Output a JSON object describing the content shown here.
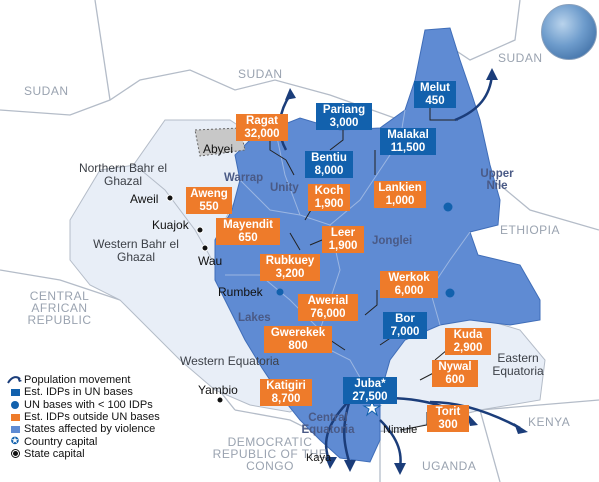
{
  "countries": {
    "sudan_top": "SUDAN",
    "sudan_left": "SUDAN",
    "sudan_right": "SUDAN",
    "ethiopia": "ETHIOPIA",
    "car": "CENTRAL AFRICAN REPUBLIC",
    "drc": "DEMOCRATIC REPUBLIC OF THE CONGO",
    "kenya": "KENYA",
    "uganda": "UGANDA"
  },
  "states": {
    "upper_nile": "Upper Nile",
    "unity": "Unity",
    "warrap": "Warrap",
    "jonglei": "Jonglei",
    "lakes": "Lakes",
    "central_equatoria": "Central Equatoria",
    "northern_bahr": "Northern Bahr el Ghazal",
    "western_bahr": "Western Bahr el Ghazal",
    "western_equatoria": "Western Equatoria",
    "eastern_equatoria": "Eastern Equatoria"
  },
  "region": {
    "abyei": "Abyei"
  },
  "cities": {
    "aweil": "Aweil",
    "kuajok": "Kuajok",
    "wau": "Wau",
    "rumbek": "Rumbek",
    "yambio": "Yambio",
    "nimule": "Nimule",
    "kaya": "Kaya"
  },
  "idp_sites": [
    {
      "name": "Melut",
      "count": "450",
      "type": "un_base"
    },
    {
      "name": "Pariang",
      "count": "3,000",
      "type": "un_base"
    },
    {
      "name": "Malakal",
      "count": "11,500",
      "type": "un_base"
    },
    {
      "name": "Bentiu",
      "count": "8,000",
      "type": "un_base"
    },
    {
      "name": "Bor",
      "count": "7,000",
      "type": "un_base"
    },
    {
      "name": "Juba*",
      "count": "27,500",
      "type": "un_base"
    },
    {
      "name": "Ragat",
      "count": "32,000",
      "type": "outside"
    },
    {
      "name": "Koch",
      "count": "1,900",
      "type": "outside"
    },
    {
      "name": "Lankien",
      "count": "1,000",
      "type": "outside"
    },
    {
      "name": "Aweng",
      "count": "550",
      "type": "outside"
    },
    {
      "name": "Mayendit",
      "count": "650",
      "type": "outside"
    },
    {
      "name": "Leer",
      "count": "1,900",
      "type": "outside"
    },
    {
      "name": "Rubkuey",
      "count": "3,200",
      "type": "outside"
    },
    {
      "name": "Werkok",
      "count": "6,000",
      "type": "outside"
    },
    {
      "name": "Awerial",
      "count": "76,000",
      "type": "outside"
    },
    {
      "name": "Gwerekek",
      "count": "800",
      "type": "outside"
    },
    {
      "name": "Kuda",
      "count": "2,900",
      "type": "outside"
    },
    {
      "name": "Nywal",
      "count": "600",
      "type": "outside"
    },
    {
      "name": "Katigiri",
      "count": "8,700",
      "type": "outside"
    },
    {
      "name": "Torit",
      "count": "300",
      "type": "outside"
    }
  ],
  "legend": [
    {
      "label": "Population movement",
      "symbol": "arrow-icon"
    },
    {
      "label": "Est. IDPs in UN bases",
      "symbol": "blue-square-icon"
    },
    {
      "label": "UN bases with < 100 IDPs",
      "symbol": "blue-dot-icon"
    },
    {
      "label": "Est. IDPs outside UN bases",
      "symbol": "orange-square-icon"
    },
    {
      "label": "States affected by violence",
      "symbol": "light-blue-square-icon"
    },
    {
      "label": "Country capital",
      "symbol": "star-icon"
    },
    {
      "label": "State capital",
      "symbol": "dot-icon"
    }
  ],
  "colors": {
    "background": "#dfe3ea",
    "country_fill": "#ffffff",
    "affected": "#5f8bd3",
    "unaffected_ss": "#e8eef7",
    "abyei": "#c8c8c8",
    "un_box": "#1261ad",
    "outside_box": "#ee7b2a",
    "arrow": "#1b3d7a"
  }
}
